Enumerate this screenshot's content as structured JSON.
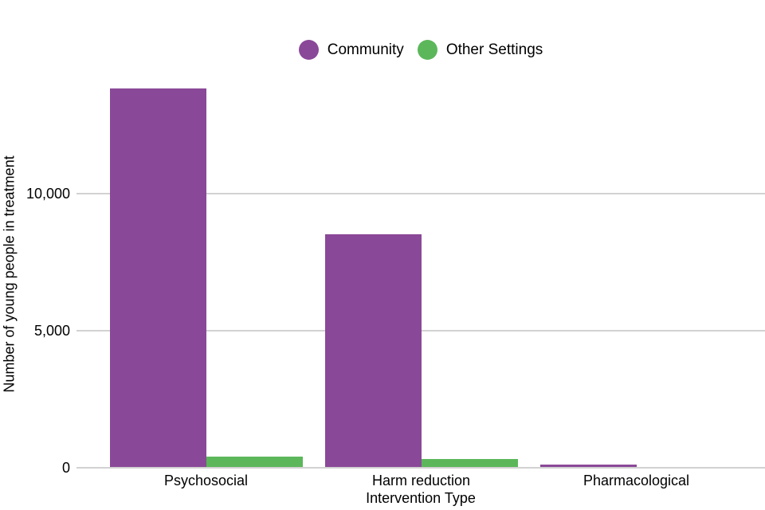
{
  "chart_data": {
    "type": "bar",
    "title": "",
    "xlabel": "Intervention Type",
    "ylabel": "Number of young people in treatment",
    "categories": [
      "Psychosocial",
      "Harm reduction",
      "Pharmacological"
    ],
    "series": [
      {
        "name": "Community",
        "color": "#8a4898",
        "values": [
          13800,
          8500,
          75
        ]
      },
      {
        "name": "Other Settings",
        "color": "#5cb75b",
        "values": [
          380,
          290,
          0
        ]
      }
    ],
    "ylim": [
      0,
      14200
    ],
    "yticks": [
      0,
      5000,
      10000
    ],
    "ytick_labels": [
      "0",
      "5,000",
      "10,000"
    ],
    "grid": "horizontal gridlines only, drawn behind bars",
    "gridline_color": "#d2d2d2",
    "legend_position": "top center",
    "legend_marker": "circle",
    "background_color": "#ffffff",
    "text_color": "#000000"
  }
}
